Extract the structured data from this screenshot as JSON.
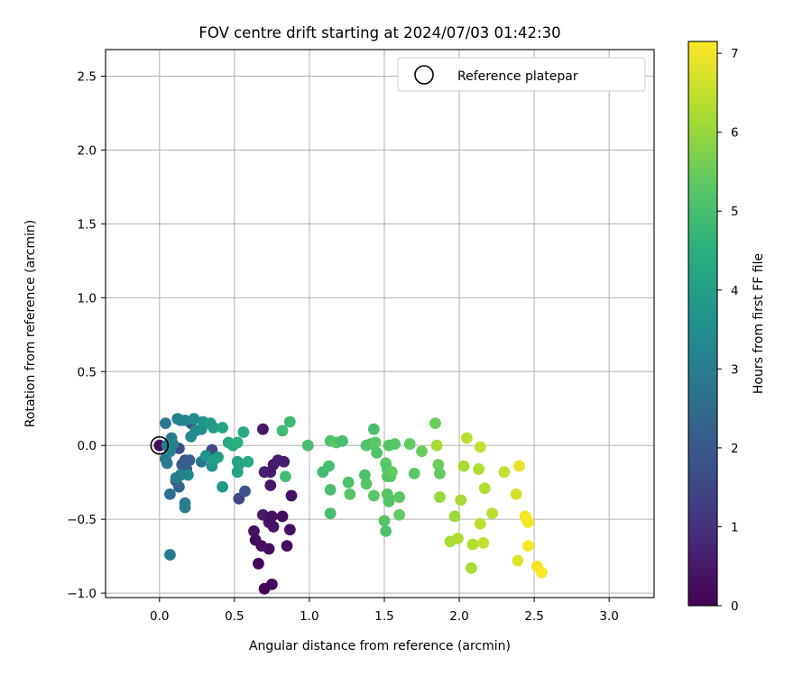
{
  "chart_data": {
    "type": "scatter",
    "title": "FOV centre drift starting at 2024/07/03 01:42:30",
    "xlabel": "Angular distance from reference (arcmin)",
    "ylabel": "Rotation from reference (arcmin)",
    "xlim": [
      -0.36,
      3.3
    ],
    "ylim": [
      -1.03,
      2.68
    ],
    "xticks": [
      0.0,
      0.5,
      1.0,
      1.5,
      2.0,
      2.5,
      3.0
    ],
    "xtick_labels": [
      "0.0",
      "0.5",
      "1.0",
      "1.5",
      "2.0",
      "2.5",
      "3.0"
    ],
    "yticks": [
      -1.0,
      -0.5,
      0.0,
      0.5,
      1.0,
      1.5,
      2.0,
      2.5
    ],
    "ytick_labels": [
      "−1.0",
      "−0.5",
      "0.0",
      "0.5",
      "1.0",
      "1.5",
      "2.0",
      "2.5"
    ],
    "grid": true,
    "colorbar": {
      "label": "Hours from first FF file",
      "colormap": "viridis",
      "range": [
        0,
        7.15
      ],
      "ticks": [
        0,
        1,
        2,
        3,
        4,
        5,
        6,
        7
      ],
      "tick_labels": [
        "0",
        "1",
        "2",
        "3",
        "4",
        "5",
        "6",
        "7"
      ]
    },
    "reference_point": {
      "x": 0.0,
      "y": 0.0,
      "label": "Reference platepar"
    },
    "legend": {
      "position": "top-right",
      "entries": [
        "Reference platepar"
      ]
    },
    "points": [
      {
        "x": 0.0,
        "y": 0.0,
        "c": 0.3
      },
      {
        "x": 0.7,
        "y": -0.97,
        "c": 0.05
      },
      {
        "x": 0.75,
        "y": -0.94,
        "c": 0.15
      },
      {
        "x": 0.66,
        "y": -0.8,
        "c": 0.1
      },
      {
        "x": 0.73,
        "y": -0.7,
        "c": 0.25
      },
      {
        "x": 0.85,
        "y": -0.68,
        "c": 0.2
      },
      {
        "x": 0.68,
        "y": -0.68,
        "c": 0.3
      },
      {
        "x": 0.64,
        "y": -0.64,
        "c": 0.2
      },
      {
        "x": 0.63,
        "y": -0.58,
        "c": 0.3
      },
      {
        "x": 0.69,
        "y": -0.47,
        "c": 0.5
      },
      {
        "x": 0.73,
        "y": -0.52,
        "c": 0.35
      },
      {
        "x": 0.76,
        "y": -0.55,
        "c": 0.4
      },
      {
        "x": 0.75,
        "y": -0.48,
        "c": 0.35
      },
      {
        "x": 0.82,
        "y": -0.48,
        "c": 0.25
      },
      {
        "x": 0.87,
        "y": -0.57,
        "c": 0.3
      },
      {
        "x": 0.88,
        "y": -0.34,
        "c": 0.35
      },
      {
        "x": 0.74,
        "y": -0.27,
        "c": 0.45
      },
      {
        "x": 0.7,
        "y": -0.18,
        "c": 0.6
      },
      {
        "x": 0.74,
        "y": -0.18,
        "c": 0.55
      },
      {
        "x": 0.76,
        "y": -0.13,
        "c": 0.5
      },
      {
        "x": 0.79,
        "y": -0.1,
        "c": 0.6
      },
      {
        "x": 0.83,
        "y": -0.11,
        "c": 0.55
      },
      {
        "x": 0.69,
        "y": 0.11,
        "c": 0.45
      },
      {
        "x": 0.53,
        "y": -0.36,
        "c": 1.5
      },
      {
        "x": 0.57,
        "y": -0.31,
        "c": 1.8
      },
      {
        "x": 0.35,
        "y": -0.03,
        "c": 1.6
      },
      {
        "x": 0.21,
        "y": 0.15,
        "c": 1.8
      },
      {
        "x": 0.13,
        "y": -0.02,
        "c": 1.7
      },
      {
        "x": 0.17,
        "y": -0.1,
        "c": 1.9
      },
      {
        "x": 0.2,
        "y": -0.1,
        "c": 2.1
      },
      {
        "x": 0.15,
        "y": -0.13,
        "c": 2.0
      },
      {
        "x": 0.18,
        "y": -0.16,
        "c": 2.2
      },
      {
        "x": 0.11,
        "y": -0.24,
        "c": 2.1
      },
      {
        "x": 0.13,
        "y": -0.28,
        "c": 2.3
      },
      {
        "x": 0.07,
        "y": -0.33,
        "c": 2.6
      },
      {
        "x": 0.17,
        "y": -0.39,
        "c": 2.9
      },
      {
        "x": 0.17,
        "y": -0.42,
        "c": 3.0
      },
      {
        "x": 0.07,
        "y": -0.74,
        "c": 2.9
      },
      {
        "x": 0.04,
        "y": 0.15,
        "c": 2.8
      },
      {
        "x": 0.05,
        "y": 0.0,
        "c": 3.0
      },
      {
        "x": 0.04,
        "y": -0.09,
        "c": 2.8
      },
      {
        "x": 0.05,
        "y": -0.12,
        "c": 2.9
      },
      {
        "x": 0.08,
        "y": 0.05,
        "c": 2.9
      },
      {
        "x": 0.09,
        "y": 0.01,
        "c": 3.1
      },
      {
        "x": 0.12,
        "y": 0.18,
        "c": 3.0
      },
      {
        "x": 0.14,
        "y": 0.17,
        "c": 3.2
      },
      {
        "x": 0.17,
        "y": 0.17,
        "c": 3.3
      },
      {
        "x": 0.23,
        "y": 0.18,
        "c": 3.5
      },
      {
        "x": 0.21,
        "y": 0.06,
        "c": 3.3
      },
      {
        "x": 0.24,
        "y": 0.1,
        "c": 3.4
      },
      {
        "x": 0.19,
        "y": -0.2,
        "c": 3.3
      },
      {
        "x": 0.14,
        "y": -0.2,
        "c": 3.1
      },
      {
        "x": 0.11,
        "y": -0.22,
        "c": 3.0
      },
      {
        "x": 0.07,
        "y": -0.04,
        "c": 3.2
      },
      {
        "x": 0.28,
        "y": -0.11,
        "c": 2.8
      },
      {
        "x": 0.28,
        "y": 0.11,
        "c": 3.5
      },
      {
        "x": 0.29,
        "y": 0.16,
        "c": 3.7
      },
      {
        "x": 0.31,
        "y": -0.07,
        "c": 3.6
      },
      {
        "x": 0.34,
        "y": 0.15,
        "c": 3.8
      },
      {
        "x": 0.35,
        "y": -0.14,
        "c": 3.7
      },
      {
        "x": 0.36,
        "y": -0.1,
        "c": 3.9
      },
      {
        "x": 0.36,
        "y": 0.12,
        "c": 3.9
      },
      {
        "x": 0.39,
        "y": -0.08,
        "c": 4.0
      },
      {
        "x": 0.42,
        "y": 0.12,
        "c": 4.2
      },
      {
        "x": 0.42,
        "y": -0.28,
        "c": 3.8
      },
      {
        "x": 0.46,
        "y": 0.02,
        "c": 4.3
      },
      {
        "x": 0.49,
        "y": 0.0,
        "c": 4.4
      },
      {
        "x": 0.52,
        "y": -0.11,
        "c": 4.0
      },
      {
        "x": 0.52,
        "y": -0.18,
        "c": 4.1
      },
      {
        "x": 0.53,
        "y": -0.13,
        "c": 4.2
      },
      {
        "x": 0.52,
        "y": 0.02,
        "c": 4.5
      },
      {
        "x": 0.56,
        "y": 0.09,
        "c": 4.3
      },
      {
        "x": 0.59,
        "y": -0.11,
        "c": 4.3
      },
      {
        "x": 0.82,
        "y": 0.1,
        "c": 4.9
      },
      {
        "x": 0.87,
        "y": 0.16,
        "c": 4.8
      },
      {
        "x": 0.84,
        "y": -0.21,
        "c": 4.9
      },
      {
        "x": 0.99,
        "y": 0.0,
        "c": 5.0
      },
      {
        "x": 1.09,
        "y": -0.18,
        "c": 4.9
      },
      {
        "x": 1.13,
        "y": -0.14,
        "c": 5.0
      },
      {
        "x": 1.14,
        "y": 0.03,
        "c": 5.1
      },
      {
        "x": 1.18,
        "y": 0.02,
        "c": 5.2
      },
      {
        "x": 1.22,
        "y": 0.03,
        "c": 5.0
      },
      {
        "x": 1.14,
        "y": -0.3,
        "c": 5.0
      },
      {
        "x": 1.14,
        "y": -0.46,
        "c": 5.0
      },
      {
        "x": 1.26,
        "y": -0.25,
        "c": 5.1
      },
      {
        "x": 1.27,
        "y": -0.33,
        "c": 5.2
      },
      {
        "x": 1.37,
        "y": -0.2,
        "c": 5.1
      },
      {
        "x": 1.38,
        "y": -0.26,
        "c": 5.2
      },
      {
        "x": 1.38,
        "y": 0.0,
        "c": 5.2
      },
      {
        "x": 1.41,
        "y": 0.01,
        "c": 5.1
      },
      {
        "x": 1.43,
        "y": 0.11,
        "c": 5.0
      },
      {
        "x": 1.44,
        "y": 0.02,
        "c": 5.3
      },
      {
        "x": 1.45,
        "y": -0.05,
        "c": 5.1
      },
      {
        "x": 1.43,
        "y": -0.34,
        "c": 5.3
      },
      {
        "x": 1.5,
        "y": -0.51,
        "c": 5.2
      },
      {
        "x": 1.51,
        "y": -0.58,
        "c": 5.1
      },
      {
        "x": 1.51,
        "y": -0.12,
        "c": 5.3
      },
      {
        "x": 1.52,
        "y": -0.16,
        "c": 5.2
      },
      {
        "x": 1.52,
        "y": -0.21,
        "c": 5.3
      },
      {
        "x": 1.53,
        "y": 0.0,
        "c": 5.2
      },
      {
        "x": 1.54,
        "y": -0.21,
        "c": 5.2
      },
      {
        "x": 1.55,
        "y": -0.18,
        "c": 5.4
      },
      {
        "x": 1.52,
        "y": -0.33,
        "c": 5.2
      },
      {
        "x": 1.53,
        "y": -0.36,
        "c": 5.3
      },
      {
        "x": 1.53,
        "y": -0.38,
        "c": 5.2
      },
      {
        "x": 1.57,
        "y": 0.01,
        "c": 5.3
      },
      {
        "x": 1.6,
        "y": -0.47,
        "c": 5.4
      },
      {
        "x": 1.6,
        "y": -0.35,
        "c": 5.3
      },
      {
        "x": 1.67,
        "y": 0.01,
        "c": 5.4
      },
      {
        "x": 1.7,
        "y": -0.19,
        "c": 5.3
      },
      {
        "x": 1.75,
        "y": -0.04,
        "c": 5.5
      },
      {
        "x": 1.84,
        "y": 0.15,
        "c": 5.5
      },
      {
        "x": 1.86,
        "y": -0.13,
        "c": 5.5
      },
      {
        "x": 1.87,
        "y": -0.19,
        "c": 5.4
      },
      {
        "x": 1.85,
        "y": 0.0,
        "c": 6.2
      },
      {
        "x": 1.87,
        "y": -0.35,
        "c": 6.0
      },
      {
        "x": 1.94,
        "y": -0.65,
        "c": 6.2
      },
      {
        "x": 1.97,
        "y": -0.48,
        "c": 6.1
      },
      {
        "x": 1.99,
        "y": -0.63,
        "c": 6.3
      },
      {
        "x": 2.01,
        "y": -0.37,
        "c": 6.2
      },
      {
        "x": 2.03,
        "y": -0.14,
        "c": 6.2
      },
      {
        "x": 2.05,
        "y": 0.05,
        "c": 6.4
      },
      {
        "x": 2.08,
        "y": -0.83,
        "c": 6.2
      },
      {
        "x": 2.09,
        "y": -0.67,
        "c": 6.3
      },
      {
        "x": 2.13,
        "y": -0.16,
        "c": 6.3
      },
      {
        "x": 2.14,
        "y": -0.01,
        "c": 6.5
      },
      {
        "x": 2.14,
        "y": -0.53,
        "c": 6.4
      },
      {
        "x": 2.16,
        "y": -0.66,
        "c": 6.5
      },
      {
        "x": 2.17,
        "y": -0.29,
        "c": 6.3
      },
      {
        "x": 2.22,
        "y": -0.46,
        "c": 6.4
      },
      {
        "x": 2.3,
        "y": -0.18,
        "c": 6.5
      },
      {
        "x": 2.38,
        "y": -0.33,
        "c": 6.7
      },
      {
        "x": 2.39,
        "y": -0.78,
        "c": 6.8
      },
      {
        "x": 2.4,
        "y": -0.14,
        "c": 6.9
      },
      {
        "x": 2.44,
        "y": -0.48,
        "c": 7.0
      },
      {
        "x": 2.45,
        "y": -0.5,
        "c": 7.1
      },
      {
        "x": 2.46,
        "y": -0.52,
        "c": 7.1
      },
      {
        "x": 2.46,
        "y": -0.68,
        "c": 7.1
      },
      {
        "x": 2.52,
        "y": -0.82,
        "c": 7.0
      },
      {
        "x": 2.55,
        "y": -0.86,
        "c": 7.1
      }
    ]
  }
}
